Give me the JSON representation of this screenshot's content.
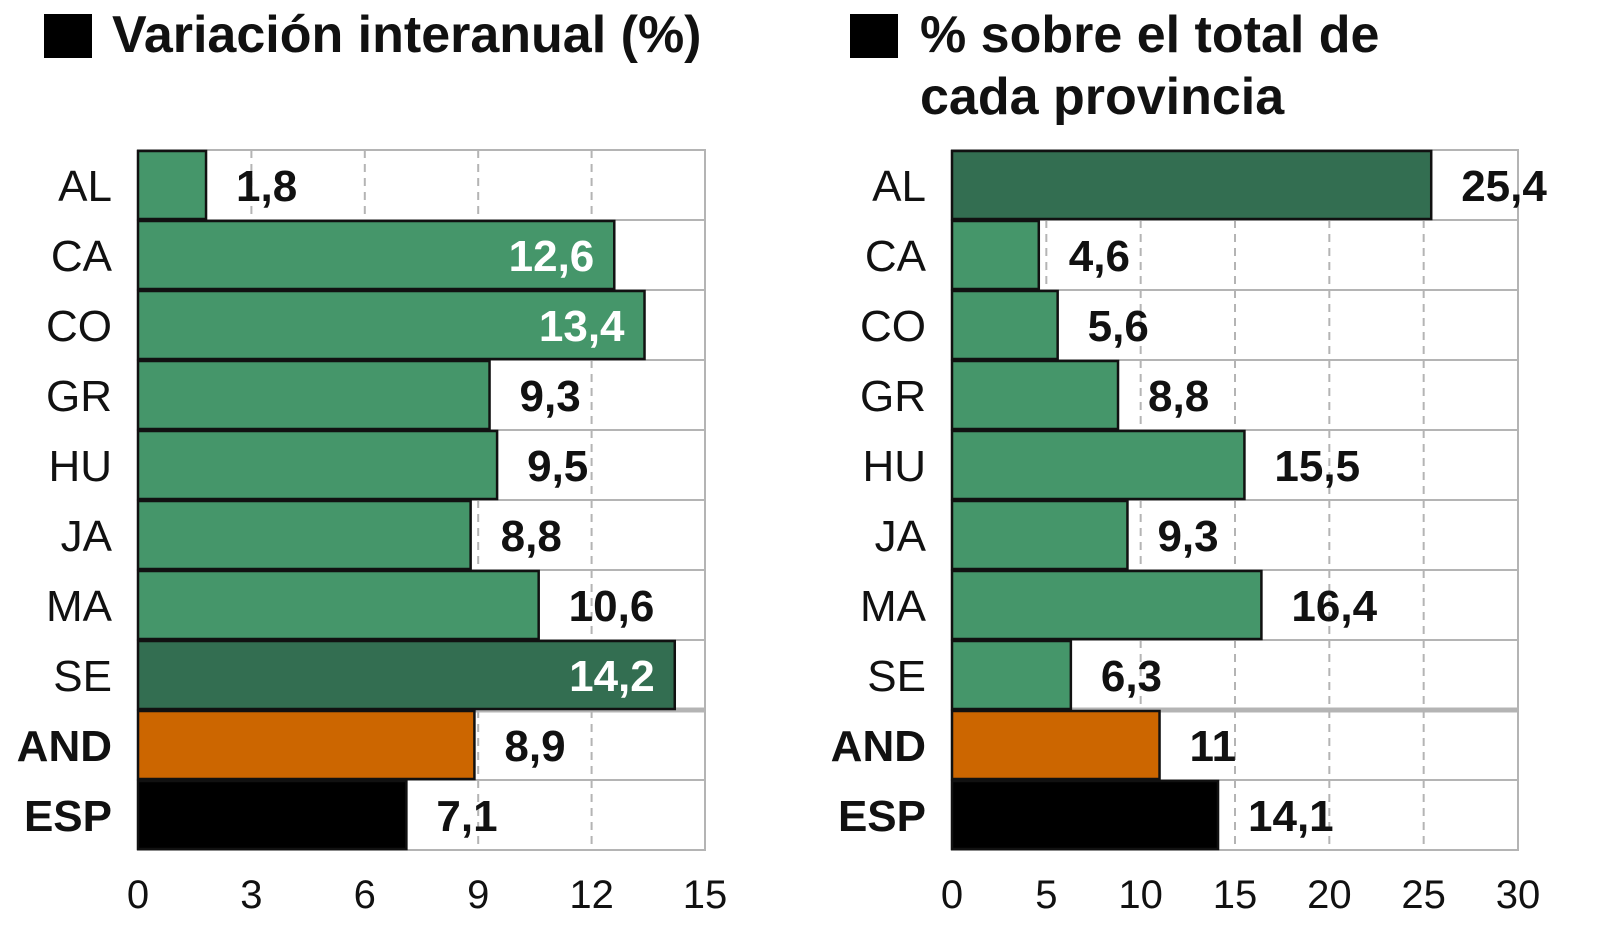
{
  "chart_data": [
    {
      "type": "bar",
      "orientation": "horizontal",
      "title": "Variación interanual (%)",
      "categories": [
        "AL",
        "CA",
        "CO",
        "GR",
        "HU",
        "JA",
        "MA",
        "SE",
        "AND",
        "ESP"
      ],
      "values": [
        1.8,
        12.6,
        13.4,
        9.3,
        9.5,
        8.8,
        10.6,
        14.2,
        8.9,
        7.1
      ],
      "value_labels": [
        "1,8",
        "12,6",
        "13,4",
        "9,3",
        "9,5",
        "8,8",
        "10,6",
        "14,2",
        "8,9",
        "7,1"
      ],
      "bar_colors": [
        "#45966a",
        "#45966a",
        "#45966a",
        "#45966a",
        "#45966a",
        "#45966a",
        "#45966a",
        "#336e51",
        "#cc6600",
        "#000000"
      ],
      "xlim": [
        0,
        15
      ],
      "ticks": [
        0,
        3,
        6,
        9,
        12,
        15
      ],
      "tick_labels": [
        "0",
        "3",
        "6",
        "9",
        "12",
        "15"
      ],
      "grid": true
    },
    {
      "type": "bar",
      "orientation": "horizontal",
      "title": "% sobre el total de cada provincia",
      "title_lines": [
        "% sobre el total de",
        "cada provincia"
      ],
      "categories": [
        "AL",
        "CA",
        "CO",
        "GR",
        "HU",
        "JA",
        "MA",
        "SE",
        "AND",
        "ESP"
      ],
      "values": [
        25.4,
        4.6,
        5.6,
        8.8,
        15.5,
        9.3,
        16.4,
        6.3,
        11,
        14.1
      ],
      "value_labels": [
        "25,4",
        "4,6",
        "5,6",
        "8,8",
        "15,5",
        "9,3",
        "16,4",
        "6,3",
        "11",
        "14,1"
      ],
      "bar_colors": [
        "#336e51",
        "#45966a",
        "#45966a",
        "#45966a",
        "#45966a",
        "#45966a",
        "#45966a",
        "#45966a",
        "#cc6600",
        "#000000"
      ],
      "xlim": [
        0,
        30
      ],
      "ticks": [
        0,
        5,
        10,
        15,
        20,
        25,
        30
      ],
      "tick_labels": [
        "0",
        "5",
        "10",
        "15",
        "20",
        "25",
        "30"
      ],
      "grid": true
    }
  ]
}
